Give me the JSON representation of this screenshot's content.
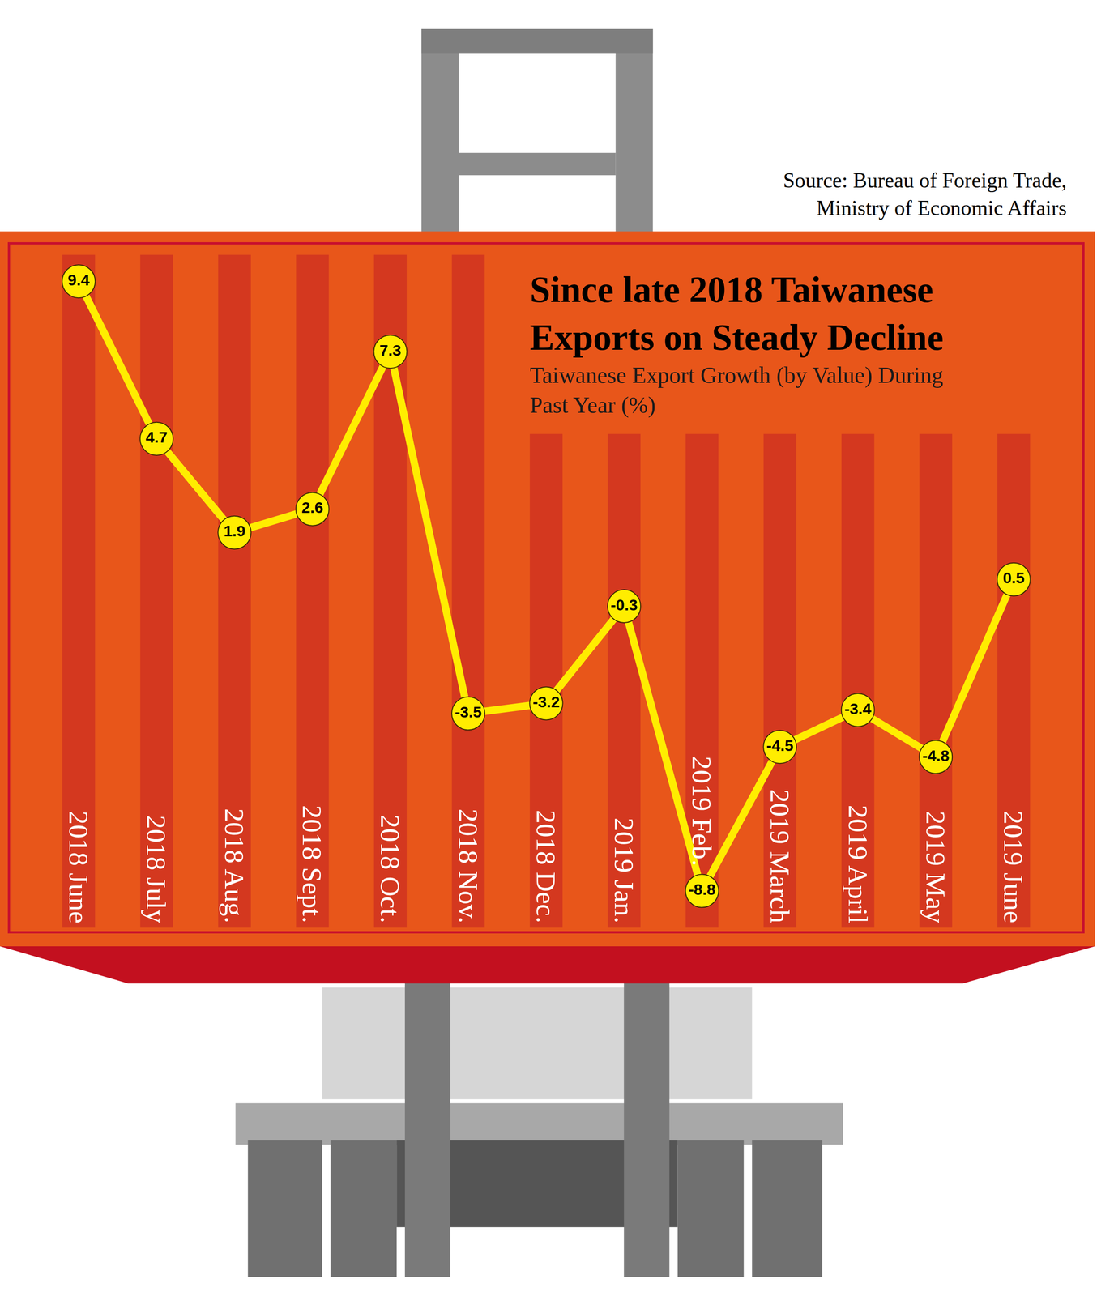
{
  "chart_data": {
    "type": "line",
    "title": "Since late 2018 Taiwanese Exports on Steady Decline",
    "subtitle": "Taiwanese Export Growth (by Value) During Past Year (%)",
    "source": "Source: Bureau of Foreign Trade, Ministry of Economic Affairs",
    "categories": [
      "2018 June",
      "2018 July",
      "2018 Aug.",
      "2018 Sept.",
      "2018 Oct.",
      "2018 Nov.",
      "2018 Dec.",
      "2019 Jan.",
      "2019 Feb.",
      "2019 March",
      "2019 April",
      "2019 May",
      "2019 June"
    ],
    "values": [
      9.4,
      4.7,
      1.9,
      2.6,
      7.3,
      -3.5,
      -3.2,
      -0.3,
      -8.8,
      -4.5,
      -3.4,
      -4.8,
      0.5
    ],
    "color": "#FFED00",
    "ylim": [
      -10,
      10.5
    ],
    "grid": false,
    "data_labels": true,
    "tick_labels": "x"
  }
}
